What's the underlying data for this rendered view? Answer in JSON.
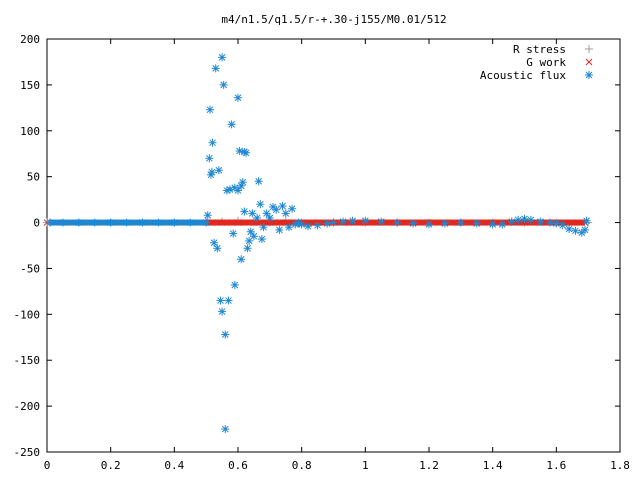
{
  "chart_data": {
    "type": "scatter",
    "title": "m4/n1.5/q1.5/r-+.30-j155/M0.01/512",
    "xlabel": "",
    "ylabel": "",
    "xlim": [
      0,
      1.8
    ],
    "ylim": [
      -250,
      200
    ],
    "x_ticks": [
      "0",
      "0.2",
      "0.4",
      "0.6",
      "0.8",
      "1",
      "1.2",
      "1.4",
      "1.6",
      "1.8"
    ],
    "y_ticks": [
      "200",
      "150",
      "100",
      "50",
      "0",
      "-50",
      "-100",
      "-150",
      "-200",
      "-250"
    ],
    "grid": false,
    "legend_position": "top-right",
    "series": [
      {
        "name": "R stress",
        "marker": "plus",
        "color": "#9e9e9e",
        "points": [
          [
            0.0,
            0
          ],
          [
            0.1,
            0
          ],
          [
            0.2,
            0
          ],
          [
            0.3,
            0
          ],
          [
            0.4,
            0
          ],
          [
            0.5,
            0.5
          ],
          [
            0.55,
            1
          ],
          [
            0.6,
            2
          ],
          [
            0.65,
            1
          ],
          [
            0.7,
            0
          ],
          [
            0.75,
            1
          ],
          [
            0.8,
            0
          ],
          [
            0.9,
            0
          ],
          [
            1.0,
            0
          ],
          [
            1.1,
            0
          ],
          [
            1.2,
            0
          ],
          [
            1.3,
            0
          ],
          [
            1.4,
            0
          ],
          [
            1.5,
            0
          ],
          [
            1.6,
            0
          ],
          [
            1.7,
            0
          ]
        ]
      },
      {
        "name": "G work",
        "marker": "cross",
        "color": "#e0281e",
        "points": [
          [
            0.0,
            0
          ],
          [
            0.1,
            0
          ],
          [
            0.2,
            0
          ],
          [
            0.3,
            0
          ],
          [
            0.4,
            0
          ],
          [
            0.5,
            0
          ],
          [
            0.52,
            0
          ],
          [
            0.55,
            0
          ],
          [
            0.58,
            0
          ],
          [
            0.6,
            0
          ],
          [
            0.65,
            0
          ],
          [
            0.7,
            0
          ],
          [
            0.75,
            0
          ],
          [
            0.8,
            0
          ],
          [
            0.85,
            0
          ],
          [
            0.9,
            0
          ],
          [
            0.95,
            0
          ],
          [
            1.0,
            0
          ],
          [
            1.05,
            0
          ],
          [
            1.1,
            0
          ],
          [
            1.15,
            0
          ],
          [
            1.2,
            0
          ],
          [
            1.25,
            0
          ],
          [
            1.3,
            0
          ],
          [
            1.35,
            0
          ],
          [
            1.4,
            0
          ],
          [
            1.45,
            0
          ],
          [
            1.5,
            0
          ],
          [
            1.55,
            0
          ],
          [
            1.6,
            0
          ],
          [
            1.65,
            0
          ],
          [
            1.69,
            0
          ]
        ]
      },
      {
        "name": "Acoustic flux",
        "marker": "star",
        "color": "#1e87d2",
        "points": [
          [
            0.01,
            0
          ],
          [
            0.05,
            0
          ],
          [
            0.1,
            0
          ],
          [
            0.15,
            0
          ],
          [
            0.2,
            0
          ],
          [
            0.25,
            0
          ],
          [
            0.3,
            0
          ],
          [
            0.35,
            0
          ],
          [
            0.4,
            0
          ],
          [
            0.45,
            0
          ],
          [
            0.5,
            0
          ],
          [
            0.505,
            8
          ],
          [
            0.51,
            70
          ],
          [
            0.512,
            123
          ],
          [
            0.515,
            52
          ],
          [
            0.518,
            55
          ],
          [
            0.52,
            87
          ],
          [
            0.525,
            -22
          ],
          [
            0.53,
            168
          ],
          [
            0.535,
            -28
          ],
          [
            0.54,
            57
          ],
          [
            0.545,
            -85
          ],
          [
            0.55,
            180
          ],
          [
            0.55,
            -97
          ],
          [
            0.555,
            150
          ],
          [
            0.56,
            -122
          ],
          [
            0.56,
            -225
          ],
          [
            0.565,
            35
          ],
          [
            0.57,
            -85
          ],
          [
            0.575,
            36
          ],
          [
            0.58,
            107
          ],
          [
            0.585,
            -12
          ],
          [
            0.59,
            38
          ],
          [
            0.59,
            -68
          ],
          [
            0.6,
            35
          ],
          [
            0.6,
            136
          ],
          [
            0.605,
            78
          ],
          [
            0.61,
            40
          ],
          [
            0.61,
            -40
          ],
          [
            0.615,
            44
          ],
          [
            0.62,
            77
          ],
          [
            0.62,
            12
          ],
          [
            0.625,
            76
          ],
          [
            0.63,
            -28
          ],
          [
            0.635,
            -20
          ],
          [
            0.64,
            -10
          ],
          [
            0.645,
            10
          ],
          [
            0.65,
            -15
          ],
          [
            0.66,
            5
          ],
          [
            0.665,
            45
          ],
          [
            0.67,
            20
          ],
          [
            0.675,
            -18
          ],
          [
            0.68,
            -5
          ],
          [
            0.69,
            10
          ],
          [
            0.7,
            5
          ],
          [
            0.71,
            17
          ],
          [
            0.72,
            14
          ],
          [
            0.73,
            -8
          ],
          [
            0.74,
            18
          ],
          [
            0.75,
            10
          ],
          [
            0.76,
            -5
          ],
          [
            0.77,
            15
          ],
          [
            0.78,
            -2
          ],
          [
            0.79,
            0
          ],
          [
            0.8,
            -2
          ],
          [
            0.82,
            -4
          ],
          [
            0.85,
            -3
          ],
          [
            0.88,
            -1
          ],
          [
            0.9,
            0
          ],
          [
            0.93,
            1
          ],
          [
            0.96,
            2
          ],
          [
            1.0,
            2
          ],
          [
            1.05,
            1
          ],
          [
            1.1,
            0
          ],
          [
            1.15,
            -1
          ],
          [
            1.2,
            -2
          ],
          [
            1.25,
            -1
          ],
          [
            1.3,
            0
          ],
          [
            1.35,
            -1
          ],
          [
            1.4,
            -2
          ],
          [
            1.43,
            -2
          ],
          [
            1.46,
            1
          ],
          [
            1.48,
            3
          ],
          [
            1.5,
            4
          ],
          [
            1.52,
            3
          ],
          [
            1.55,
            1
          ],
          [
            1.58,
            0
          ],
          [
            1.6,
            -1
          ],
          [
            1.62,
            -3
          ],
          [
            1.64,
            -7
          ],
          [
            1.66,
            -9
          ],
          [
            1.68,
            -11
          ],
          [
            1.69,
            -8
          ],
          [
            1.695,
            2
          ]
        ]
      }
    ]
  }
}
